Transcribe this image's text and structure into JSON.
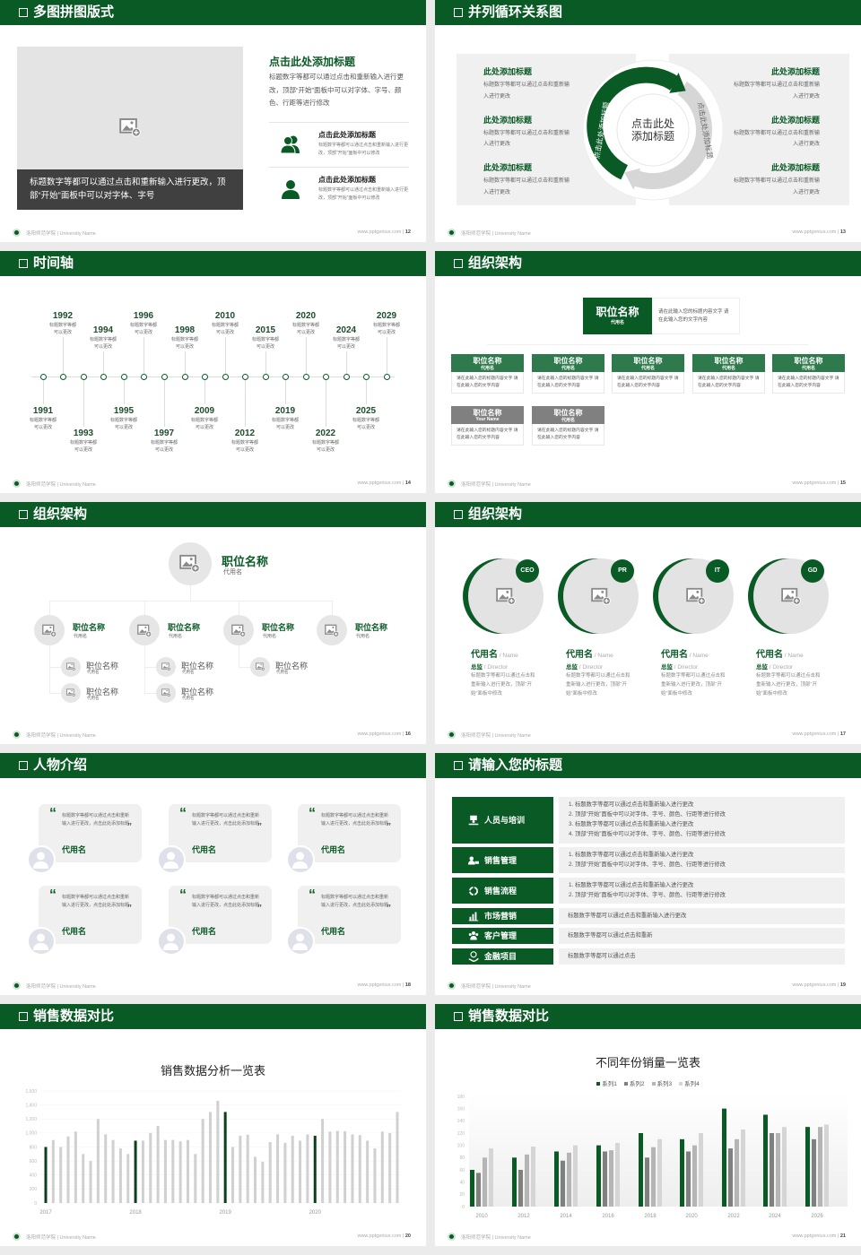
{
  "footer": {
    "school": "洛阳师范学院 | University Name",
    "site": "www.pptgenius.com  |  "
  },
  "colors": {
    "brand": "#0a5a26",
    "placeholder": "#e4e4e4",
    "caption": "#404040",
    "sub_header": "#2f7a4c",
    "gray_header": "#808080"
  },
  "multi_image": {
    "title": "多图拼图版式",
    "page": "12",
    "caption": "标题数字等都可以通过点击和重新输入进行更改，顶部“开始”面板中可以对字体、字号",
    "heading": "点击此处添加标题",
    "paragraph": "标题数字等都可以通过点击和重新输入进行更改，顶部“开始”面板中可以对字体、字号、颜色、行距等进行修改",
    "items": [
      {
        "icon": "users-icon",
        "title": "点击此处添加标题",
        "desc": "标题数字等都可以通过点击和重新输入进行更改，顶部“开始”面板中可以修改"
      },
      {
        "icon": "user-icon",
        "title": "点击此处添加标题",
        "desc": "标题数字等都可以通过点击和重新输入进行更改，顶部“开始”面板中可以修改"
      }
    ]
  },
  "cycle": {
    "title": "并列循环关系图",
    "page": "13",
    "center": "点击此处添加标题",
    "ring_left": "点击此处添加标题",
    "ring_right": "点击此处添加标题",
    "left": [
      {
        "title": "此处添加标题",
        "desc": "标题数字等都可以通过点击和重新输入进行更改"
      },
      {
        "title": "此处添加标题",
        "desc": "标题数字等都可以通过点击和重新输入进行更改"
      },
      {
        "title": "此处添加标题",
        "desc": "标题数字等都可以通过点击和重新输入进行更改"
      }
    ],
    "right": [
      {
        "title": "此处添加标题",
        "desc": "标题数字等都可以通过点击和重新输入进行更改"
      },
      {
        "title": "此处添加标题",
        "desc": "标题数字等都可以通过点击和重新输入进行更改"
      },
      {
        "title": "此处添加标题",
        "desc": "标题数字等都可以通过点击和重新输入进行更改"
      }
    ]
  },
  "timeline": {
    "title": "时间轴",
    "page": "14",
    "events": [
      {
        "year": "1991",
        "desc": "标题数字等都可以更改"
      },
      {
        "year": "1992",
        "desc": "标题数字等都可以更改"
      },
      {
        "year": "1993",
        "desc": "标题数字等都可以更改"
      },
      {
        "year": "1994",
        "desc": "标题数字等都可以更改"
      },
      {
        "year": "1995",
        "desc": "标题数字等都可以更改"
      },
      {
        "year": "1996",
        "desc": "标题数字等都可以更改"
      },
      {
        "year": "1997",
        "desc": "标题数字等都可以更改"
      },
      {
        "year": "1998",
        "desc": "标题数字等都可以更改"
      },
      {
        "year": "2009",
        "desc": "标题数字等都可以更改"
      },
      {
        "year": "2010",
        "desc": "标题数字等都可以更改"
      },
      {
        "year": "2012",
        "desc": "标题数字等都可以更改"
      },
      {
        "year": "2015",
        "desc": "标题数字等都可以更改"
      },
      {
        "year": "2019",
        "desc": "标题数字等都可以更改"
      },
      {
        "year": "2020",
        "desc": "标题数字等都可以更改"
      },
      {
        "year": "2022",
        "desc": "标题数字等都可以更改"
      },
      {
        "year": "2024",
        "desc": "标题数字等都可以更改"
      },
      {
        "year": "2025",
        "desc": "标题数字等都可以更改"
      },
      {
        "year": "2029",
        "desc": "标题数字等都可以更改"
      }
    ]
  },
  "org_boxes": {
    "title": "组织架构",
    "page": "15",
    "top": {
      "title": "职位名称",
      "sub": "代用名",
      "desc": "请在此输入您的标题内容文字 请在此输入您的文字内容"
    },
    "row1": [
      {
        "title": "职位名称",
        "sub": "代用名",
        "desc": "请在此输入您的标题内容文字 请在此输入您的文字内容"
      },
      {
        "title": "职位名称",
        "sub": "代用名",
        "desc": "请在此输入您的标题内容文字 请在此输入您的文字内容"
      },
      {
        "title": "职位名称",
        "sub": "代用名",
        "desc": "请在此输入您的标题内容文字 请在此输入您的文字内容"
      },
      {
        "title": "职位名称",
        "sub": "代用名",
        "desc": "请在此输入您的标题内容文字 请在此输入您的文字内容"
      },
      {
        "title": "职位名称",
        "sub": "代用名",
        "desc": "请在此输入您的标题内容文字 请在此输入您的文字内容"
      }
    ],
    "row2": [
      {
        "title": "职位名称",
        "sub": "Your Name",
        "desc": "请在此输入您的标题内容文字 请在此输入您的文字内容"
      },
      {
        "title": "职位名称",
        "sub": "代用名",
        "desc": "请在此输入您的标题内容文字 请在此输入您的文字内容"
      }
    ]
  },
  "org_circles": {
    "title": "组织架构",
    "page": "16",
    "top": {
      "title": "职位名称",
      "sub": "代用名"
    },
    "mids": [
      {
        "title": "职位名称",
        "sub": "代用名",
        "subs": [
          {
            "title": "职位名称",
            "sub": "代用名"
          },
          {
            "title": "职位名称",
            "sub": "代用名"
          }
        ]
      },
      {
        "title": "职位名称",
        "sub": "代用名",
        "subs": [
          {
            "title": "职位名称",
            "sub": "代用名"
          },
          {
            "title": "职位名称",
            "sub": "代用名"
          }
        ]
      },
      {
        "title": "职位名称",
        "sub": "代用名",
        "subs": [
          {
            "title": "职位名称",
            "sub": "代用名"
          }
        ]
      },
      {
        "title": "职位名称",
        "sub": "代用名",
        "subs": []
      }
    ]
  },
  "team": {
    "title": "组织架构",
    "page": "17",
    "members": [
      {
        "badge": "CEO",
        "name": "代用名",
        "name_en": " / Name",
        "role": "总监",
        "role_en": " / Director",
        "desc": "标题数字等都可以通过点击和重新输入进行更改，顶部“开始”面板中修改"
      },
      {
        "badge": "PR",
        "name": "代用名",
        "name_en": " / Name",
        "role": "总监",
        "role_en": " / Director",
        "desc": "标题数字等都可以通过点击和重新输入进行更改，顶部“开始”面板中修改"
      },
      {
        "badge": "IT",
        "name": "代用名",
        "name_en": " / Name",
        "role": "总监",
        "role_en": " / Director",
        "desc": "标题数字等都可以通过点击和重新输入进行更改，顶部“开始”面板中修改"
      },
      {
        "badge": "GD",
        "name": "代用名",
        "name_en": " / Name",
        "role": "总监",
        "role_en": " / Director",
        "desc": "标题数字等都可以通过点击和重新输入进行更改，顶部“开始”面板中修改"
      }
    ]
  },
  "testimonials": {
    "title": "人物介绍",
    "page": "18",
    "open_quote": "“",
    "close_quote": "”",
    "cards": [
      {
        "text": "标题数字等都可以通过点击和重新输入进行更改，点击此处添加标题",
        "name": "代用名"
      },
      {
        "text": "标题数字等都可以通过点击和重新输入进行更改，点击此处添加标题",
        "name": "代用名"
      },
      {
        "text": "标题数字等都可以通过点击和重新输入进行更改，点击此处添加标题",
        "name": "代用名"
      },
      {
        "text": "标题数字等都可以通过点击和重新输入进行更改，点击此处添加标题",
        "name": "代用名"
      },
      {
        "text": "标题数字等都可以通过点击和重新输入进行更改，点击此处添加标题",
        "name": "代用名"
      },
      {
        "text": "标题数字等都可以通过点击和重新输入进行更改，点击此处添加标题",
        "name": "代用名"
      }
    ]
  },
  "topics": {
    "title": "请输入您的标题",
    "page": "19",
    "rows": [
      {
        "icon": "training-icon",
        "label": "人员与培训",
        "lines": [
          "1.  标题数字等都可以通过点击和重新输入进行更改",
          "2.  顶部“开始”面板中可以对字体、字号、颜色、行距等进行修改",
          "3.  标题数字等都可以通过点击和重新输入进行更改",
          "4.  顶部“开始”面板中可以对字体、字号、颜色、行距等进行修改"
        ]
      },
      {
        "icon": "sales-management-icon",
        "label": "销售管理",
        "lines": [
          "1.  标题数字等都可以通过点击和重新输入进行更改",
          "2.  顶部“开始”面板中可以对字体、字号、颜色、行距等进行修改"
        ]
      },
      {
        "icon": "cycle-icon",
        "label": "销售流程",
        "lines": [
          "1.  标题数字等都可以通过点击和重新输入进行更改",
          "2.  顶部“开始”面板中可以对字体、字号、颜色、行距等进行修改"
        ]
      },
      {
        "icon": "bar-chart-icon",
        "label": "市场营销",
        "lines": [
          "标题数字等都可以通过点击和重新输入进行更改"
        ]
      },
      {
        "icon": "customers-icon",
        "label": "客户管理",
        "lines": [
          "标题数字等都可以通过点击和重新"
        ]
      },
      {
        "icon": "finance-icon",
        "label": "金融项目",
        "lines": [
          "标题数字等都可以通过点击"
        ]
      }
    ]
  },
  "sales_monthly": {
    "title": "销售数据对比",
    "page": "20"
  },
  "sales_yearly": {
    "title": "销售数据对比",
    "page": "21"
  },
  "chart_data": [
    {
      "type": "bar",
      "title": "销售数据分析一览表",
      "ylim": [
        0,
        1600
      ],
      "yticks": [
        "0",
        "200",
        "400",
        "600",
        "800",
        "1,000",
        "1,200",
        "1,400",
        "1,600"
      ],
      "category_labels": [
        "2017",
        "2018",
        "2019",
        "2020"
      ],
      "grid": true,
      "values": [
        800,
        900,
        800,
        950,
        1020,
        700,
        600,
        1200,
        980,
        900,
        780,
        700,
        890,
        890,
        1000,
        1100,
        900,
        900,
        880,
        900,
        700,
        1200,
        1300,
        1460,
        1300,
        800,
        960,
        975,
        660,
        590,
        870,
        980,
        860,
        960,
        890,
        980,
        960,
        1200,
        1020,
        1030,
        1025,
        980,
        970,
        890,
        780,
        1020,
        1000,
        1300
      ],
      "highlight_every": 12,
      "colors": {
        "highlight": "#0d3f1c",
        "bar": "#d0d0d0"
      }
    },
    {
      "type": "bar",
      "title": "不同年份销量一览表",
      "ylim": [
        0,
        180
      ],
      "yticks": [
        "0",
        "20",
        "40",
        "60",
        "80",
        "100",
        "120",
        "140",
        "160",
        "180"
      ],
      "legend": "top",
      "grid": false,
      "categories": [
        "2010",
        "2012",
        "2014",
        "2016",
        "2018",
        "2020",
        "2022",
        "2024",
        "2026"
      ],
      "series": [
        {
          "name": "系列1",
          "color": "#0a5a26",
          "values": [
            60,
            80,
            90,
            100,
            120,
            110,
            160,
            150,
            130
          ]
        },
        {
          "name": "系列2",
          "color": "#808080",
          "values": [
            55,
            60,
            75,
            90,
            80,
            90,
            95,
            120,
            110
          ]
        },
        {
          "name": "系列3",
          "color": "#b5b5b5",
          "values": [
            80,
            85,
            88,
            92,
            97,
            100,
            110,
            120,
            130
          ]
        },
        {
          "name": "系列4",
          "color": "#d5d5d5",
          "values": [
            95,
            98,
            100,
            104,
            110,
            120,
            126,
            130,
            134
          ]
        }
      ]
    }
  ]
}
